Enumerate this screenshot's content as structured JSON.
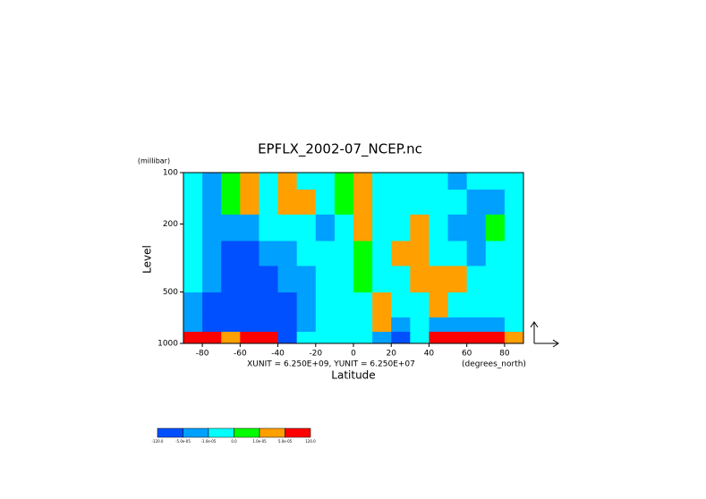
{
  "chart_data": {
    "type": "contour",
    "title": "EPFLX_2002-07_NCEP.nc",
    "x_label": "Latitude",
    "x_unit": "(degrees_north)",
    "y_label": "Level",
    "y_unit": "(millibar)",
    "annotation": "XUNIT = 6.250E+09, YUNIT = 6.250E+07",
    "xlim": [
      -90,
      90
    ],
    "xticks": [
      -80,
      -60,
      -40,
      -20,
      0,
      20,
      40,
      60,
      80
    ],
    "ylim": [
      1000,
      100
    ],
    "yticks": [
      100,
      200,
      500,
      1000
    ],
    "y_log": true,
    "x_bins": [
      -90,
      -80,
      -70,
      -60,
      -50,
      -40,
      -30,
      -20,
      -10,
      0,
      10,
      20,
      30,
      40,
      50,
      60,
      70,
      80,
      90
    ],
    "y_bins": [
      1000,
      850,
      700,
      500,
      350,
      250,
      175,
      125,
      100
    ],
    "field": [
      [
        0.0001,
        0.0001,
        3e-05,
        0.0001,
        0.0001,
        -0.0001,
        -5e-06,
        -5e-06,
        -5e-06,
        -5e-06,
        -3e-05,
        -0.0001,
        -5e-06,
        0.0001,
        0.0001,
        0.0001,
        0.0001,
        3e-05
      ],
      [
        -3e-05,
        -0.0001,
        -0.0001,
        -0.0001,
        -0.0001,
        -0.0001,
        -3e-05,
        -5e-06,
        -5e-06,
        -5e-06,
        3e-05,
        -3e-05,
        -5e-06,
        -3e-05,
        -3e-05,
        -3e-05,
        -3e-05,
        -5e-06
      ],
      [
        -3e-05,
        -0.0001,
        -0.0001,
        -0.0001,
        -0.0001,
        -0.0001,
        -3e-05,
        -5e-06,
        -5e-06,
        -5e-06,
        3e-05,
        -5e-06,
        -5e-06,
        3e-05,
        -5e-06,
        -5e-06,
        -5e-06,
        -5e-06
      ],
      [
        -5e-06,
        -3e-05,
        -0.0001,
        -0.0001,
        -0.0001,
        -3e-05,
        -3e-05,
        -5e-06,
        -5e-06,
        5e-06,
        -5e-06,
        -5e-06,
        3e-05,
        3e-05,
        3e-05,
        -5e-06,
        -5e-06,
        -5e-06
      ],
      [
        -5e-06,
        -3e-05,
        -0.0001,
        -0.0001,
        -3e-05,
        -3e-05,
        -5e-06,
        -5e-06,
        -5e-06,
        5e-06,
        -5e-06,
        3e-05,
        3e-05,
        -5e-06,
        -5e-06,
        -3e-05,
        -5e-06,
        -5e-06
      ],
      [
        -5e-06,
        -3e-05,
        -3e-05,
        -3e-05,
        -5e-06,
        -5e-06,
        -5e-06,
        -3e-05,
        -5e-06,
        3e-05,
        -5e-06,
        -5e-06,
        3e-05,
        -5e-06,
        -3e-05,
        -3e-05,
        5e-06,
        -5e-06
      ],
      [
        -5e-06,
        -3e-05,
        5e-06,
        3e-05,
        -5e-06,
        3e-05,
        3e-05,
        -5e-06,
        5e-06,
        3e-05,
        -5e-06,
        -5e-06,
        -5e-06,
        -5e-06,
        -5e-06,
        -3e-05,
        -3e-05,
        -5e-06
      ],
      [
        -5e-06,
        -3e-05,
        5e-06,
        3e-05,
        -5e-06,
        3e-05,
        -5e-06,
        -5e-06,
        5e-06,
        3e-05,
        -5e-06,
        -5e-06,
        -5e-06,
        -5e-06,
        -3e-05,
        -5e-06,
        -5e-06,
        -5e-06
      ]
    ],
    "colorbar": {
      "colors": [
        "#0050ff",
        "#00a0ff",
        "#00ffff",
        "#00ff00",
        "#ffa000",
        "#ff0000"
      ],
      "ticks": [
        {
          "value": -120,
          "label": "-120.0"
        },
        {
          "value": -5e-05,
          "label": "-5.0e-05"
        },
        {
          "value": -1e-05,
          "label": "-1.0e-05"
        },
        {
          "value": 0,
          "label": "0.0"
        },
        {
          "value": 1e-05,
          "label": "1.0e-05"
        },
        {
          "value": 5e-05,
          "label": "5.0e-05"
        },
        {
          "value": 120,
          "label": "120.0"
        }
      ]
    }
  }
}
